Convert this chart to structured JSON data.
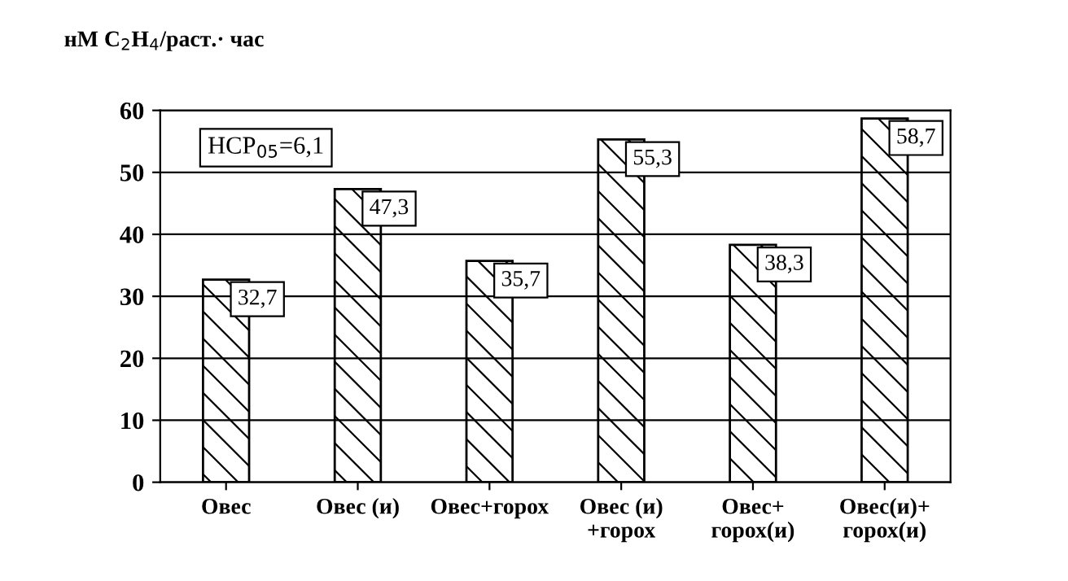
{
  "chart_data": {
    "type": "bar",
    "ylabel": "нМ C$_{2}$H$_{4}$/раст.· час",
    "categories": [
      "Овес",
      "Овес (и)",
      "Овес+горох",
      "Овес (и)\n+горох",
      "Овес+\nгорох(и)",
      "Овес(и)+\nгорох(и)"
    ],
    "values": [
      32.7,
      47.3,
      35.7,
      55.3,
      38.3,
      58.7
    ],
    "value_labels": [
      "32,7",
      "47,3",
      "35,7",
      "55,3",
      "38,3",
      "58,7"
    ],
    "color": "#000000",
    "ylim": [
      0,
      60
    ],
    "yticks": [
      0,
      10,
      20,
      30,
      40,
      50,
      60
    ],
    "grid": "y",
    "legend": false,
    "annotations": [
      "НСР$_{05}$=6,1"
    ]
  }
}
